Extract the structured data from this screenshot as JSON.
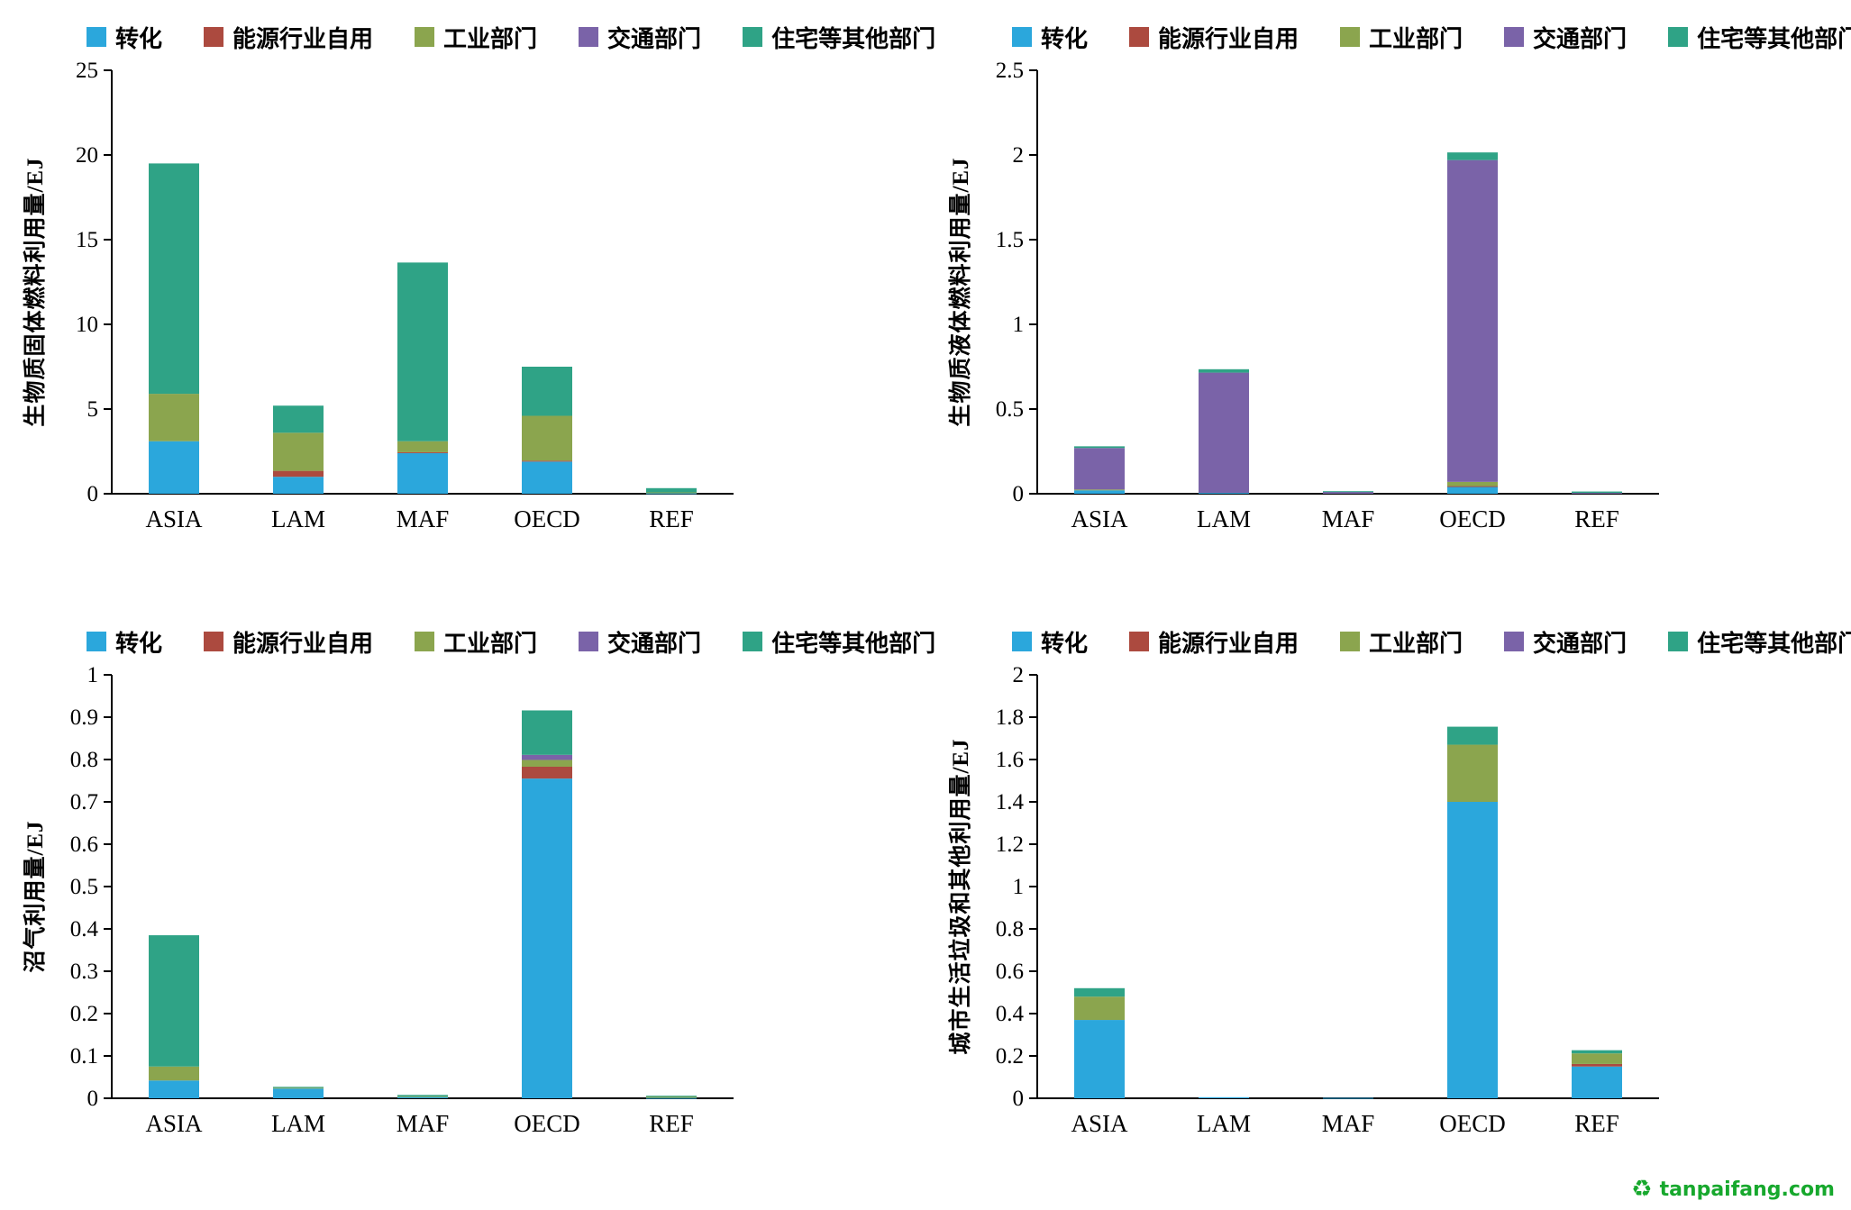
{
  "legend": {
    "items": [
      {
        "label": "转化",
        "color": "#2ba7dc"
      },
      {
        "label": "能源行业自用",
        "color": "#ac4a3f"
      },
      {
        "label": "工业部门",
        "color": "#8ba54e"
      },
      {
        "label": "交通部门",
        "color": "#7a63a8"
      },
      {
        "label": "住宅等其他部门",
        "color": "#2fa386"
      }
    ]
  },
  "chart_data": [
    {
      "type": "bar",
      "stacked": true,
      "title": "",
      "ylabel": "生物质固体燃料利用量/EJ",
      "xlabel": "",
      "ylim": [
        0,
        25
      ],
      "yticks": [
        "0",
        "5",
        "10",
        "15",
        "20",
        "25"
      ],
      "grid": false,
      "legend_position": "top",
      "categories": [
        "ASIA",
        "LAM",
        "MAF",
        "OECD",
        "REF"
      ],
      "series": [
        {
          "name": "转化",
          "values": [
            3.1,
            1.0,
            2.4,
            1.9,
            0.03
          ]
        },
        {
          "name": "能源行业自用",
          "values": [
            0,
            0.35,
            0.05,
            0.05,
            0
          ]
        },
        {
          "name": "工业部门",
          "values": [
            2.8,
            2.25,
            0.65,
            2.65,
            0.05
          ]
        },
        {
          "name": "交通部门",
          "values": [
            0,
            0,
            0,
            0,
            0
          ]
        },
        {
          "name": "住宅等其他部门",
          "values": [
            13.6,
            1.6,
            10.55,
            2.9,
            0.25
          ]
        }
      ]
    },
    {
      "type": "bar",
      "stacked": true,
      "title": "",
      "ylabel": "生物质液体燃料利用量/EJ",
      "xlabel": "",
      "ylim": [
        0,
        2.5
      ],
      "yticks": [
        "0",
        "0.5",
        "1",
        "1.5",
        "2",
        "2.5"
      ],
      "grid": false,
      "legend_position": "top",
      "categories": [
        "ASIA",
        "LAM",
        "MAF",
        "OECD",
        "REF"
      ],
      "series": [
        {
          "name": "转化",
          "values": [
            0.02,
            0.005,
            0,
            0.04,
            0
          ]
        },
        {
          "name": "能源行业自用",
          "values": [
            0,
            0,
            0,
            0.005,
            0
          ]
        },
        {
          "name": "工业部门",
          "values": [
            0.005,
            0,
            0,
            0.025,
            0
          ]
        },
        {
          "name": "交通部门",
          "values": [
            0.245,
            0.71,
            0.012,
            1.9,
            0.005
          ]
        },
        {
          "name": "住宅等其他部门",
          "values": [
            0.01,
            0.02,
            0.003,
            0.045,
            0.008
          ]
        }
      ]
    },
    {
      "type": "bar",
      "stacked": true,
      "title": "",
      "ylabel": "沼气利用量/EJ",
      "xlabel": "",
      "ylim": [
        0,
        1
      ],
      "yticks": [
        "0",
        "0.1",
        "0.2",
        "0.3",
        "0.4",
        "0.5",
        "0.6",
        "0.7",
        "0.8",
        "0.9",
        "1"
      ],
      "grid": false,
      "legend_position": "top",
      "categories": [
        "ASIA",
        "LAM",
        "MAF",
        "OECD",
        "REF"
      ],
      "series": [
        {
          "name": "转化",
          "values": [
            0.042,
            0.023,
            0.004,
            0.755,
            0.001
          ]
        },
        {
          "name": "能源行业自用",
          "values": [
            0,
            0,
            0,
            0.028,
            0
          ]
        },
        {
          "name": "工业部门",
          "values": [
            0.033,
            0.002,
            0.001,
            0.016,
            0.004
          ]
        },
        {
          "name": "交通部门",
          "values": [
            0,
            0,
            0,
            0.012,
            0
          ]
        },
        {
          "name": "住宅等其他部门",
          "values": [
            0.31,
            0.002,
            0.003,
            0.105,
            0.001
          ]
        }
      ]
    },
    {
      "type": "bar",
      "stacked": true,
      "title": "",
      "ylabel": "城市生活垃圾和其他利用量/EJ",
      "xlabel": "",
      "ylim": [
        0,
        2
      ],
      "yticks": [
        "0",
        "0.2",
        "0.4",
        "0.6",
        "0.8",
        "1",
        "1.2",
        "1.4",
        "1.6",
        "1.8",
        "2"
      ],
      "grid": false,
      "legend_position": "top",
      "categories": [
        "ASIA",
        "LAM",
        "MAF",
        "OECD",
        "REF"
      ],
      "series": [
        {
          "name": "转化",
          "values": [
            0.37,
            0.005,
            0.002,
            1.4,
            0.15
          ]
        },
        {
          "name": "能源行业自用",
          "values": [
            0,
            0,
            0,
            0,
            0.012
          ]
        },
        {
          "name": "工业部门",
          "values": [
            0.11,
            0,
            0,
            0.27,
            0.05
          ]
        },
        {
          "name": "交通部门",
          "values": [
            0,
            0,
            0,
            0,
            0
          ]
        },
        {
          "name": "住宅等其他部门",
          "values": [
            0.04,
            0,
            0,
            0.085,
            0.015
          ]
        }
      ]
    }
  ],
  "watermark": {
    "text": "tanpaifang.com",
    "color": "#17a82d",
    "icon": "recycle"
  }
}
